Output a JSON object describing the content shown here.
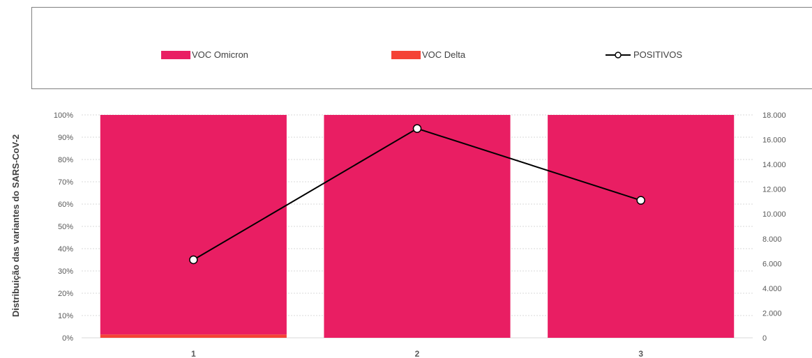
{
  "legend": {
    "omicron_label": "VOC Omicron",
    "delta_label": "VOC Delta",
    "positivos_label": "POSITIVOS"
  },
  "colors": {
    "omicron": "#e91e63",
    "delta": "#f44336",
    "line": "#000000",
    "grid": "#d9d9d9",
    "text": "#595959"
  },
  "chart_data": {
    "type": "bar",
    "categories": [
      "1",
      "2",
      "3"
    ],
    "series": [
      {
        "name": "VOC Delta",
        "values": [
          1.5,
          0,
          0
        ]
      },
      {
        "name": "VOC Omicron",
        "values": [
          98.5,
          100,
          100
        ]
      },
      {
        "name": "POSITIVOS",
        "values": [
          6300,
          16900,
          11100
        ]
      }
    ],
    "ylabel": "Distribuição das variantes do SARS-CoV-2",
    "y_left": {
      "range": [
        0,
        100
      ],
      "ticks": [
        "0%",
        "10%",
        "20%",
        "30%",
        "40%",
        "50%",
        "60%",
        "70%",
        "80%",
        "90%",
        "100%"
      ]
    },
    "y_right": {
      "range": [
        0,
        18000
      ],
      "ticks": [
        "0",
        "2.000",
        "4.000",
        "6.000",
        "8.000",
        "10.000",
        "12.000",
        "14.000",
        "16.000",
        "18.000"
      ]
    },
    "stacked": true,
    "grid": true,
    "legend_position": "top"
  }
}
